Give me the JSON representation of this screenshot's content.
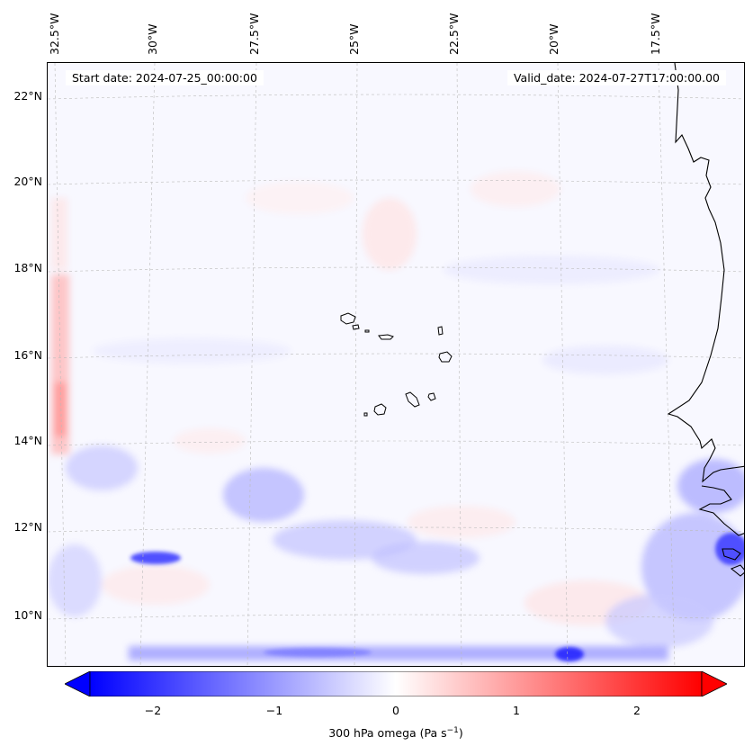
{
  "map": {
    "start_date_label": "Start date: 2024-07-25_00:00:00",
    "valid_date_label": "Valid_date: 2024-07-27T17:00:00.00",
    "longitude_labels": [
      "32.5°W",
      "30°W",
      "27.5°W",
      "25°W",
      "22.5°W",
      "20°W",
      "17.5°W"
    ],
    "latitude_labels": [
      "22°N",
      "20°N",
      "18°N",
      "16°N",
      "14°N",
      "12°N",
      "10°N"
    ],
    "variable": "300 hPa omega",
    "field_colors": {
      "negative": "#0000ff",
      "zero": "#ffffff",
      "positive": "#ff0000",
      "coast": "#000000"
    }
  },
  "colorbar": {
    "range": [
      -2.6,
      2.6
    ],
    "ticks": [
      "−2",
      "−1",
      "0",
      "1",
      "2"
    ],
    "tick_values": [
      -2,
      -1,
      0,
      1,
      2
    ],
    "label_text": "300 hPa omega (Pa s",
    "label_exp": "−1",
    "label_close": ")"
  }
}
